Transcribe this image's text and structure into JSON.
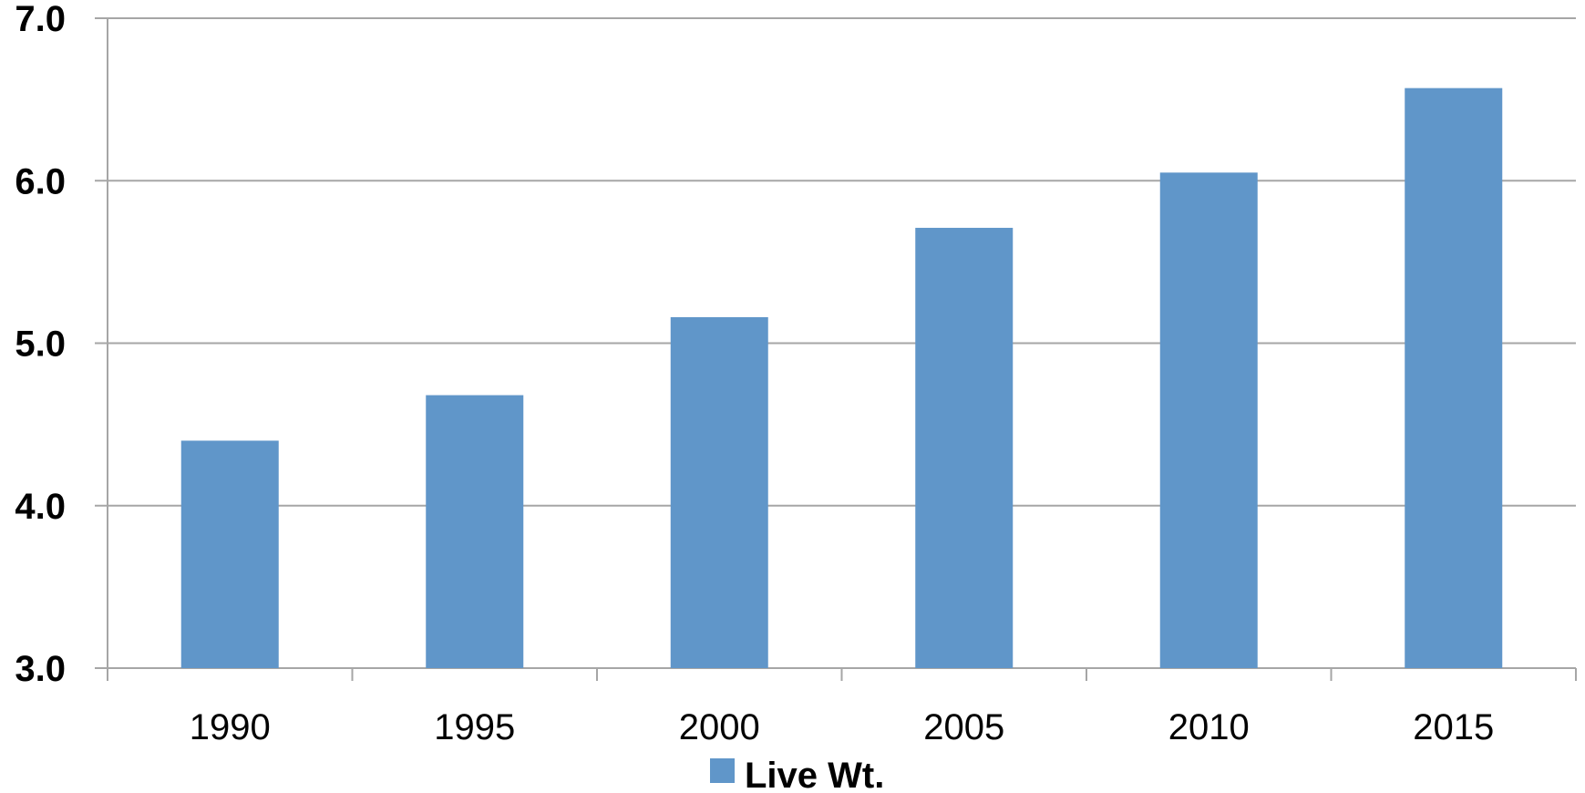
{
  "chart_data": {
    "type": "bar",
    "categories": [
      "1990",
      "1995",
      "2000",
      "2005",
      "2010",
      "2015"
    ],
    "series": [
      {
        "name": "Live Wt.",
        "values": [
          4.4,
          4.68,
          5.16,
          5.71,
          6.05,
          6.57
        ],
        "color": "#6096c9"
      }
    ],
    "ylim": [
      3.0,
      7.0
    ],
    "yticks": [
      "3.0",
      "4.0",
      "5.0",
      "6.0",
      "7.0"
    ],
    "grid": true,
    "legend_position": "bottom",
    "gridline_color": "#a6a6a6"
  }
}
